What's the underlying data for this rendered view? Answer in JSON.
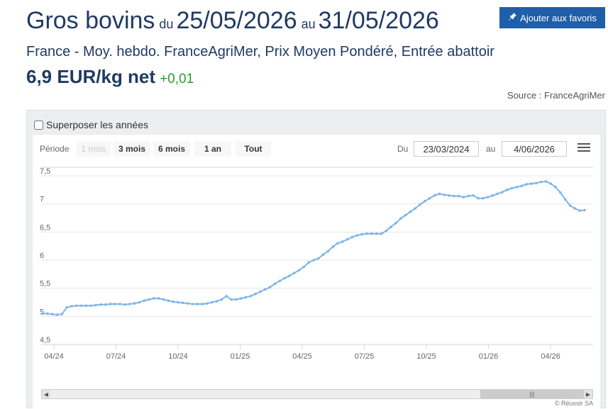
{
  "header": {
    "product": "Gros bovins",
    "du_label": "du",
    "date_from": "25/05/2026",
    "au_label": "au",
    "date_to": "31/05/2026",
    "favorite_label": "Ajouter aux favoris",
    "subtitle": "France - Moy. hebdo. FranceAgriMer, Prix Moyen Pondéré, Entrée abattoir",
    "price": "6,9 EUR/kg net",
    "change": "+0,01",
    "source": "Source : FranceAgriMer"
  },
  "toolbar": {
    "overlay_label": "Superposer les années",
    "period_label": "Période",
    "periods": [
      "1 mois",
      "3 mois",
      "6 mois",
      "1 an",
      "Tout"
    ],
    "from_label": "Du",
    "from_value": "23/03/2024",
    "to_label": "au",
    "to_value": "4/06/2026"
  },
  "credit": "© Réussir SA",
  "colors": {
    "line": "#7cb5ec",
    "title": "#1f3a64",
    "positive": "#2a9d2a",
    "button": "#1f5ea8"
  },
  "chart_data": {
    "type": "line",
    "ylim": [
      4.5,
      7.5
    ],
    "y_ticks": [
      "4,5",
      "5",
      "5,5",
      "6",
      "6,5",
      "7",
      "7,5"
    ],
    "x_ticks": [
      "04/24",
      "07/24",
      "10/24",
      "01/25",
      "04/25",
      "07/25",
      "10/25",
      "01/26",
      "04/26"
    ],
    "grid": true,
    "values": [
      5.05,
      5.05,
      5.04,
      5.03,
      5.04,
      5.16,
      5.18,
      5.19,
      5.19,
      5.19,
      5.19,
      5.2,
      5.21,
      5.21,
      5.22,
      5.22,
      5.22,
      5.21,
      5.22,
      5.23,
      5.25,
      5.28,
      5.3,
      5.32,
      5.32,
      5.3,
      5.28,
      5.26,
      5.25,
      5.24,
      5.23,
      5.22,
      5.22,
      5.22,
      5.23,
      5.25,
      5.27,
      5.3,
      5.36,
      5.3,
      5.3,
      5.32,
      5.34,
      5.36,
      5.4,
      5.44,
      5.48,
      5.52,
      5.58,
      5.63,
      5.68,
      5.72,
      5.77,
      5.82,
      5.88,
      5.96,
      6.0,
      6.03,
      6.1,
      6.16,
      6.24,
      6.3,
      6.33,
      6.37,
      6.41,
      6.44,
      6.46,
      6.47,
      6.47,
      6.47,
      6.47,
      6.52,
      6.59,
      6.66,
      6.74,
      6.8,
      6.86,
      6.92,
      6.99,
      7.05,
      7.1,
      7.15,
      7.18,
      7.16,
      7.15,
      7.14,
      7.14,
      7.12,
      7.14,
      7.15,
      7.1,
      7.1,
      7.12,
      7.15,
      7.18,
      7.21,
      7.25,
      7.28,
      7.3,
      7.32,
      7.35,
      7.36,
      7.37,
      7.39,
      7.4,
      7.36,
      7.3,
      7.2,
      7.08,
      6.97,
      6.92,
      6.88,
      6.89
    ]
  }
}
